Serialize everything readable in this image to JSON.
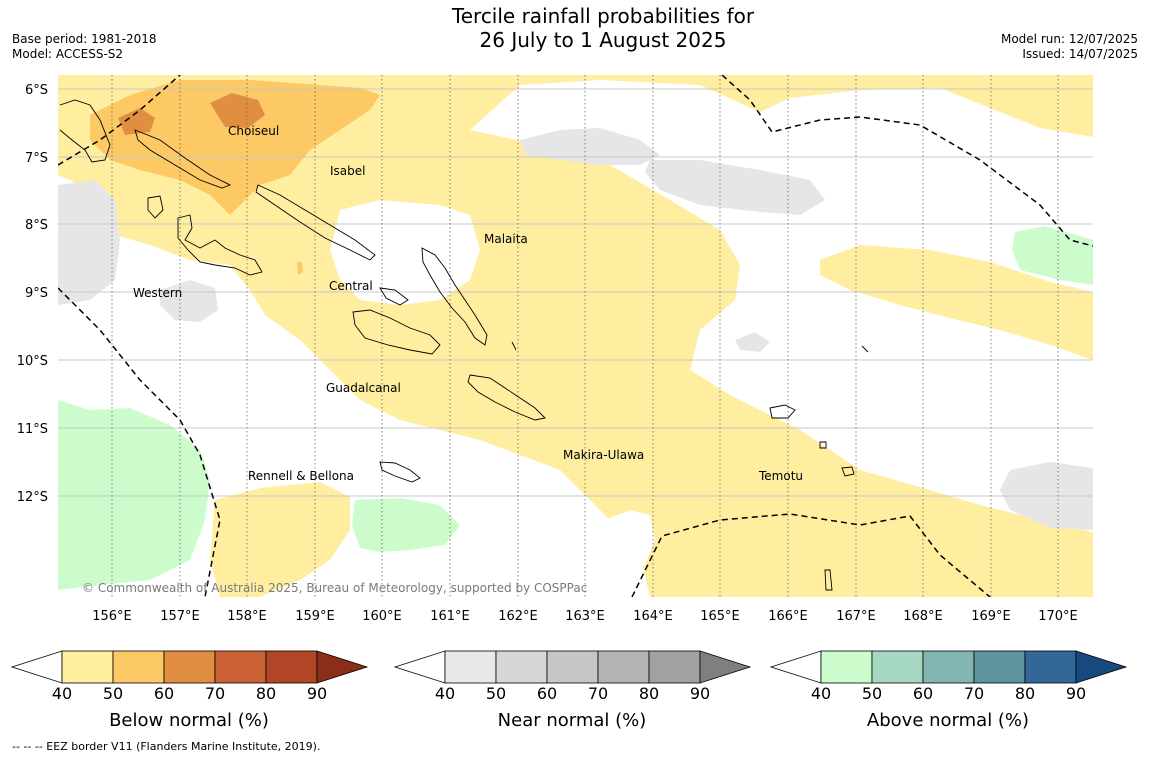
{
  "title": {
    "line1": "Tercile rainfall probabilities for",
    "line2": "26 July to 1 August 2025"
  },
  "meta": {
    "base_period": "Base period: 1981-2018",
    "model": "Model: ACCESS-S2",
    "model_run": "Model run: 12/07/2025",
    "issued": "Issued: 14/07/2025"
  },
  "map": {
    "lat_labels": [
      "6°S",
      "7°S",
      "8°S",
      "9°S",
      "10°S",
      "11°S",
      "12°S"
    ],
    "lon_labels": [
      "156°E",
      "157°E",
      "158°E",
      "159°E",
      "160°E",
      "161°E",
      "162°E",
      "163°E",
      "164°E",
      "165°E",
      "166°E",
      "167°E",
      "168°E",
      "169°E",
      "170°E"
    ],
    "regions": {
      "choiseul": "Choiseul",
      "isabel": "Isabel",
      "malaita": "Malaita",
      "western": "Western",
      "central": "Central",
      "guadalcanal": "Guadalcanal",
      "rennell": "Rennell & Bellona",
      "makira": "Makira-Ulawa",
      "temotu": "Temotu"
    },
    "copyright": "© Commonwealth of Australia 2025, Bureau of Meteorology, supported by COSPPac"
  },
  "colorbars": {
    "below": {
      "label": "Below normal (%)",
      "colors": [
        "#ffeda0",
        "#fdc964",
        "#e08f40",
        "#cb6233",
        "#b04626",
        "#8c2d19"
      ]
    },
    "near": {
      "label": "Near normal (%)",
      "colors": [
        "#e8e8e8",
        "#d6d6d6",
        "#c6c6c6",
        "#b3b3b3",
        "#a1a1a1",
        "#7f7f7f"
      ]
    },
    "above": {
      "label": "Above normal (%)",
      "colors": [
        "#ccfccc",
        "#a6d7c0",
        "#82b6b2",
        "#5e93a0",
        "#33679a",
        "#184a80"
      ]
    },
    "ticks": [
      "40",
      "50",
      "60",
      "70",
      "80",
      "90"
    ]
  },
  "footnote": "--  --  -- EEZ border V11 (Flanders Marine Institute, 2019)."
}
